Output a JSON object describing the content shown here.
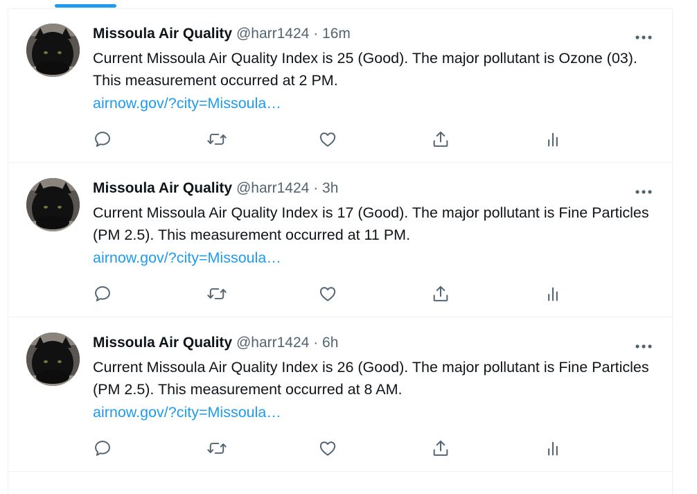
{
  "tweets": [
    {
      "name": "Missoula Air Quality",
      "handle": "@harr1424",
      "separator": "·",
      "time": "16m",
      "text": "Current Missoula Air Quality Index is 25 (Good). The major pollutant is Ozone (03). This measurement occurred at 2 PM.",
      "link": "airnow.gov/?city=Missoula…"
    },
    {
      "name": "Missoula Air Quality",
      "handle": "@harr1424",
      "separator": "·",
      "time": "3h",
      "text": "Current Missoula Air Quality Index is 17 (Good). The major pollutant is Fine Particles (PM 2.5). This measurement occurred at 11 PM.",
      "link": "airnow.gov/?city=Missoula…"
    },
    {
      "name": "Missoula Air Quality",
      "handle": "@harr1424",
      "separator": "·",
      "time": "6h",
      "text": "Current Missoula Air Quality Index is 26 (Good). The major pollutant is Fine Particles (PM 2.5). This measurement occurred at 8 AM.",
      "link": "airnow.gov/?city=Missoula…"
    }
  ],
  "icons": {
    "more": "more-horizontal-icon",
    "reply": "reply-icon",
    "retweet": "retweet-icon",
    "like": "heart-icon",
    "share": "share-icon",
    "analytics": "analytics-icon"
  },
  "colors": {
    "accent": "#1d9bf0",
    "text": "#0f1419",
    "secondary": "#536471",
    "border": "#eff3f4"
  }
}
